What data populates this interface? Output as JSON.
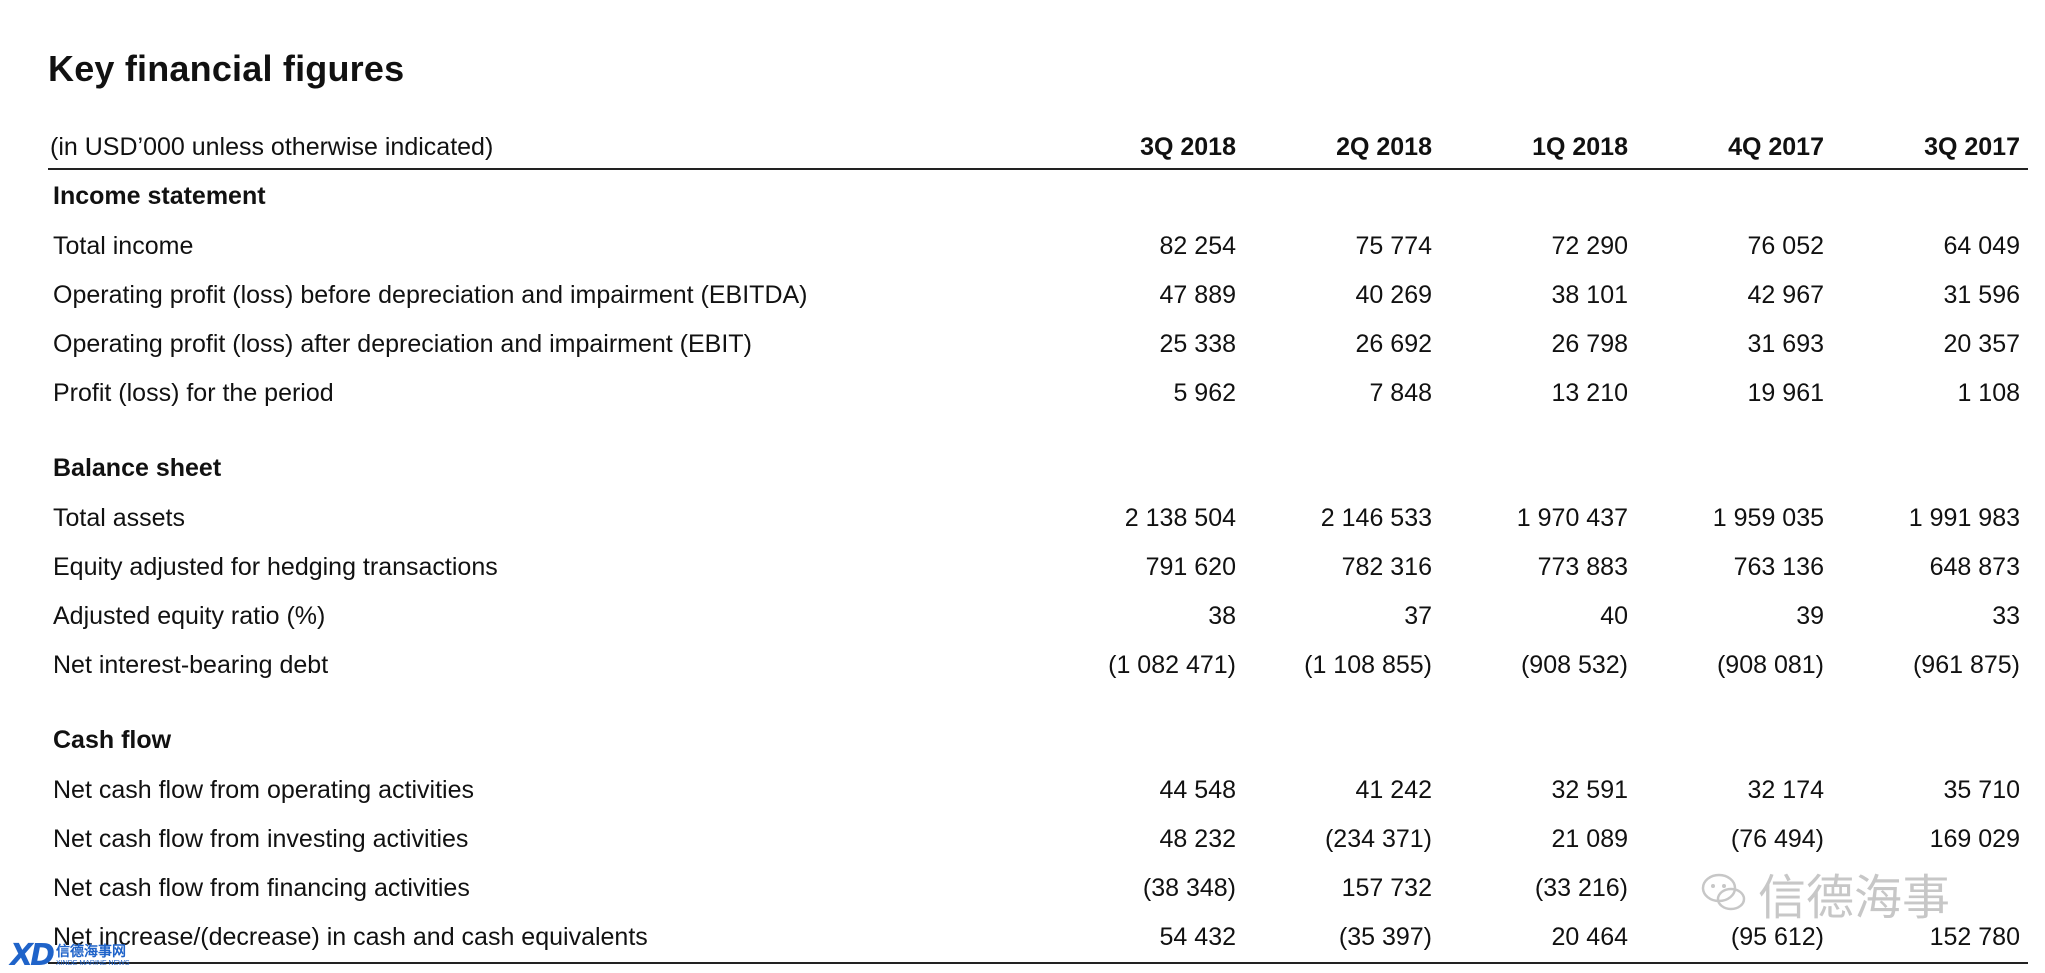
{
  "title": "Key financial figures",
  "header": {
    "label": "(in USD’000 unless otherwise indicated)",
    "columns": [
      "3Q 2018",
      "2Q 2018",
      "1Q 2018",
      "4Q 2017",
      "3Q 2017"
    ]
  },
  "sections": [
    {
      "title": "Income statement",
      "rows": [
        {
          "label": "Total income",
          "values": [
            "82 254",
            "75 774",
            "72 290",
            "76 052",
            "64 049"
          ]
        },
        {
          "label": "Operating profit (loss) before depreciation and impairment (EBITDA)",
          "values": [
            "47 889",
            "40 269",
            "38 101",
            "42 967",
            "31 596"
          ]
        },
        {
          "label": "Operating profit (loss) after depreciation and impairment (EBIT)",
          "values": [
            "25 338",
            "26 692",
            "26 798",
            "31 693",
            "20 357"
          ]
        },
        {
          "label": "Profit (loss) for the period",
          "values": [
            "5 962",
            "7 848",
            "13 210",
            "19 961",
            "1 108"
          ]
        }
      ]
    },
    {
      "title": "Balance sheet",
      "rows": [
        {
          "label": "Total assets",
          "values": [
            "2 138 504",
            "2 146 533",
            "1 970 437",
            "1 959 035",
            "1 991 983"
          ]
        },
        {
          "label": "Equity adjusted for hedging transactions",
          "values": [
            "791 620",
            "782 316",
            "773 883",
            "763 136",
            "648 873"
          ]
        },
        {
          "label": "Adjusted equity ratio (%)",
          "values": [
            "38",
            "37",
            "40",
            "39",
            "33"
          ]
        },
        {
          "label": "Net interest-bearing debt",
          "values": [
            "(1 082 471)",
            "(1 108 855)",
            "(908 532)",
            "(908 081)",
            "(961 875)"
          ]
        }
      ]
    },
    {
      "title": "Cash flow",
      "rows": [
        {
          "label": "Net cash flow from operating activities",
          "values": [
            "44 548",
            "41 242",
            "32 591",
            "32 174",
            "35 710"
          ]
        },
        {
          "label": "Net cash flow from investing activities",
          "values": [
            "48 232",
            "(234 371)",
            "21 089",
            "(76 494)",
            "169 029"
          ]
        },
        {
          "label": "Net cash flow from financing activities",
          "values": [
            "(38 348)",
            "157 732",
            "(33 216)",
            "",
            ""
          ]
        },
        {
          "label": "Net increase/(decrease) in cash and cash equivalents",
          "values": [
            "54 432",
            "(35 397)",
            "20 464",
            "(95 612)",
            "152 780"
          ]
        }
      ]
    }
  ],
  "watermarks": {
    "logo_mark": "XD",
    "logo_cn": "信德海事网",
    "logo_en": "XINDE MARINE NEWS",
    "wechat_text": "信德海事",
    "icon": "wechat-icon"
  },
  "colors": {
    "logo_blue": "#1f63c9",
    "watermark_gray": "#9a9a9a"
  }
}
